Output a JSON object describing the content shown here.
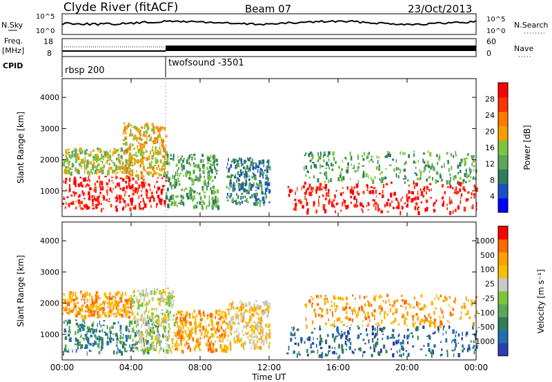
{
  "header": {
    "station": "Clyde River (fitACF)",
    "beam": "Beam 07",
    "date": "23/Oct/2013"
  },
  "sky_panel": {
    "left_label": "N.Sky",
    "left_ticks": [
      "10^5",
      "10^0"
    ],
    "right_label": "N.Search",
    "right_ticks": [
      "10^5",
      "10^0"
    ]
  },
  "freq_panel": {
    "left_label_line1": "Freq.",
    "left_label_line2": "[MHz]",
    "left_ticks": [
      "18",
      "8"
    ],
    "right_label": "Nave",
    "right_ticks": [
      "60",
      "0"
    ]
  },
  "cpid": {
    "label": "CPID",
    "modes": [
      {
        "name": "rbsp 200",
        "start_hour": 0
      },
      {
        "name": "twofsound -3501",
        "start_hour": 6
      }
    ]
  },
  "chart_data": [
    {
      "type": "heatmap",
      "panel": "power",
      "ylabel": "Slant Range [km]",
      "xlabel": "Time UT",
      "x_ticks": [
        "00:00",
        "04:00",
        "08:00",
        "12:00",
        "16:00",
        "20:00",
        "00:00"
      ],
      "y_ticks": [
        "1000",
        "2000",
        "3000",
        "4000"
      ],
      "xlim": [
        0,
        24
      ],
      "ylim": [
        180,
        4600
      ],
      "colorbar_label": "Power [dB]",
      "colorbar_ticks": [
        "28",
        "24",
        "20",
        "16",
        "12",
        "8",
        "4"
      ],
      "colorbar_colors": [
        "#0000ff",
        "#1a4fc8",
        "#2f7d5a",
        "#5aa75a",
        "#7cc63c",
        "#f5a000",
        "#ff7a00",
        "#ff3300",
        "#ff0000"
      ],
      "regions": [
        {
          "t0": 0,
          "t1": 6,
          "r0": 450,
          "r1": 1500,
          "level": 8
        },
        {
          "t0": 13,
          "t1": 24,
          "r0": 350,
          "r1": 1300,
          "level": 8
        },
        {
          "t0": 0,
          "t1": 4,
          "r0": 1600,
          "r1": 2400,
          "level": 4
        },
        {
          "t0": 3.5,
          "t1": 6,
          "r0": 1500,
          "r1": 3200,
          "level": 5
        },
        {
          "t0": 6,
          "t1": 9,
          "r0": 500,
          "r1": 2200,
          "level": 3
        },
        {
          "t0": 9.5,
          "t1": 12,
          "r0": 600,
          "r1": 2100,
          "level": 2
        },
        {
          "t0": 14,
          "t1": 24,
          "r0": 1300,
          "r1": 2300,
          "level": 3
        }
      ]
    },
    {
      "type": "heatmap",
      "panel": "velocity",
      "ylabel": "Slant Range [km]",
      "xlabel": "Time UT",
      "x_ticks": [
        "00:00",
        "04:00",
        "08:00",
        "12:00",
        "16:00",
        "20:00",
        "00:00"
      ],
      "y_ticks": [
        "1000",
        "2000",
        "3000",
        "4000"
      ],
      "xlim": [
        0,
        24
      ],
      "ylim": [
        180,
        4600
      ],
      "colorbar_label": "Velocity [m s⁻¹]",
      "colorbar_ticks": [
        "1000",
        "500",
        "100",
        "25",
        "-25",
        "-100",
        "-500",
        "-1000"
      ],
      "colorbar_colors": [
        "#2a3fb0",
        "#1f6fb0",
        "#2f7d5a",
        "#5aa75a",
        "#7cc63c",
        "#c8c8c8",
        "#f5c000",
        "#ffa000",
        "#ff6a00",
        "#ff0000"
      ],
      "regions": [
        {
          "t0": 0,
          "t1": 6,
          "r0": 450,
          "r1": 1500,
          "level": 2
        },
        {
          "t0": 13,
          "t1": 24,
          "r0": 350,
          "r1": 1300,
          "level": 1
        },
        {
          "t0": 0,
          "t1": 4,
          "r0": 1600,
          "r1": 2400,
          "level": 7
        },
        {
          "t0": 4,
          "t1": 6.5,
          "r0": 500,
          "r1": 2500,
          "level": 5
        },
        {
          "t0": 6.5,
          "t1": 9.5,
          "r0": 500,
          "r1": 1800,
          "level": 7
        },
        {
          "t0": 9.5,
          "t1": 12,
          "r0": 600,
          "r1": 2100,
          "level": 6
        },
        {
          "t0": 14,
          "t1": 24,
          "r0": 1300,
          "r1": 2300,
          "level": 7
        }
      ]
    }
  ],
  "footer": {
    "xlabel": "Time UT"
  }
}
